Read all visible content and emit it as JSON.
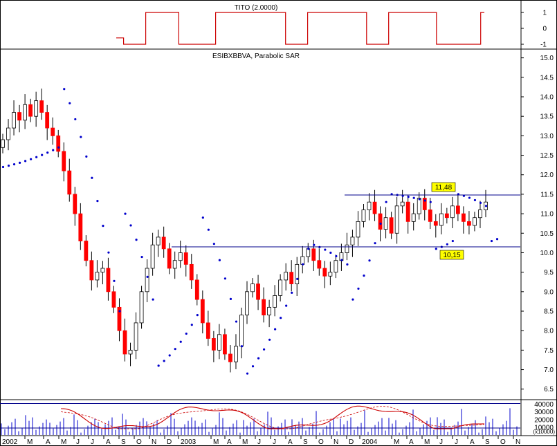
{
  "chart_data": {
    "type": "candlestick",
    "panels": [
      {
        "name": "indicator",
        "title": "TITO (2.0000)",
        "y_ticks": [
          "1",
          "0",
          "-1"
        ],
        "ylim": [
          -1,
          1
        ],
        "segments": [
          {
            "from": 0.0,
            "to": 0.02,
            "v": -0.6
          },
          {
            "from": 0.02,
            "to": 0.05,
            "v": -1
          },
          {
            "from": 0.05,
            "to": 0.08,
            "v": -1
          },
          {
            "from": 0.08,
            "to": 0.12,
            "v": 1
          },
          {
            "from": 0.12,
            "to": 0.17,
            "v": 1
          },
          {
            "from": 0.17,
            "to": 0.2,
            "v": -1
          },
          {
            "from": 0.2,
            "to": 0.27,
            "v": -1
          },
          {
            "from": 0.27,
            "to": 0.31,
            "v": 1
          },
          {
            "from": 0.31,
            "to": 0.46,
            "v": 1
          },
          {
            "from": 0.46,
            "to": 0.48,
            "v": -1
          },
          {
            "from": 0.48,
            "to": 0.52,
            "v": -1
          },
          {
            "from": 0.52,
            "to": 0.55,
            "v": 1
          },
          {
            "from": 0.55,
            "to": 0.68,
            "v": 1
          },
          {
            "from": 0.68,
            "to": 0.71,
            "v": -1
          },
          {
            "from": 0.71,
            "to": 0.74,
            "v": -1
          },
          {
            "from": 0.74,
            "to": 0.78,
            "v": 1
          },
          {
            "from": 0.78,
            "to": 0.87,
            "v": 1
          },
          {
            "from": 0.87,
            "to": 0.9,
            "v": -1
          },
          {
            "from": 0.9,
            "to": 0.96,
            "v": -1
          },
          {
            "from": 0.96,
            "to": 0.99,
            "v": -1
          },
          {
            "from": 0.99,
            "to": 1.0,
            "v": 1
          }
        ]
      },
      {
        "name": "price",
        "title": "ESIBXBBVA, Parabolic SAR",
        "y_ticks": [
          "15.0",
          "14.5",
          "14.0",
          "13.5",
          "13.0",
          "12.5",
          "12.0",
          "11.5",
          "11.0",
          "10.5",
          "10.0",
          "9.5",
          "9.0",
          "8.5",
          "8.0",
          "7.5",
          "7.0",
          "6.5"
        ],
        "ylim": [
          6.3,
          15.1
        ],
        "close_series": [
          12.9,
          13.2,
          13.6,
          13.4,
          13.8,
          13.5,
          13.9,
          13.6,
          13.2,
          13.0,
          12.6,
          12.1,
          11.5,
          11.0,
          10.3,
          9.8,
          9.3,
          9.5,
          9.6,
          9.0,
          8.6,
          8.0,
          7.4,
          7.5,
          8.2,
          9.0,
          9.6,
          10.2,
          10.4,
          10.1,
          9.6,
          9.8,
          10.0,
          9.7,
          9.3,
          8.8,
          8.2,
          7.8,
          7.5,
          7.9,
          7.4,
          7.2,
          7.6,
          8.4,
          9.0,
          9.2,
          8.8,
          8.4,
          8.6,
          8.9,
          9.3,
          9.5,
          9.2,
          9.7,
          9.9,
          10.1,
          9.8,
          9.6,
          9.4,
          9.5,
          9.8,
          10.0,
          10.2,
          10.4,
          10.8,
          11.1,
          11.3,
          11.0,
          10.6,
          10.9,
          10.5,
          11.2,
          11.3,
          10.8,
          11.0,
          11.4,
          11.1,
          10.8,
          10.7,
          11.0,
          10.9,
          11.2,
          11.0,
          10.8,
          10.7,
          10.9,
          11.1,
          11.3
        ],
        "hlines": [
          {
            "label": "11,48",
            "value": 11.48
          },
          {
            "label": "10,15",
            "value": 10.15
          }
        ],
        "sar_segments": [
          {
            "from": 0,
            "to": 10,
            "start": 12.2,
            "end": 12.7
          },
          {
            "from": 11,
            "to": 21,
            "start": 14.2,
            "end": 8.5
          },
          {
            "from": 22,
            "to": 27,
            "start": 11.0,
            "end": 8.8
          },
          {
            "from": 28,
            "to": 35,
            "start": 7.1,
            "end": 8.4
          },
          {
            "from": 36,
            "to": 43,
            "start": 10.9,
            "end": 7.6
          },
          {
            "from": 44,
            "to": 55,
            "start": 6.9,
            "end": 10.1
          },
          {
            "from": 56,
            "to": 62,
            "start": 10.2,
            "end": 9.7
          },
          {
            "from": 63,
            "to": 69,
            "start": 8.8,
            "end": 11.3
          },
          {
            "from": 70,
            "to": 77,
            "start": 11.5,
            "end": 11.3
          },
          {
            "from": 78,
            "to": 81,
            "start": 10.1,
            "end": 10.3
          },
          {
            "from": 82,
            "to": 87,
            "start": 11.5,
            "end": 11.2
          },
          {
            "from": 88,
            "to": 89,
            "start": 10.3,
            "end": 10.35
          }
        ]
      },
      {
        "name": "volume",
        "y_ticks": [
          "40000",
          "30000",
          "20000",
          "10000"
        ],
        "unit_label": "(x10000)",
        "ylim": [
          0,
          45000
        ],
        "level_line": 41000,
        "base_line": 9000
      }
    ],
    "x_ticks": [
      "2002",
      "M",
      "A",
      "M",
      "J",
      "J",
      "A",
      "S",
      "O",
      "N",
      "D",
      "2003",
      "M",
      "A",
      "M",
      "J",
      "J",
      "A",
      "S",
      "O",
      "N",
      "D",
      "2004",
      "M",
      "A",
      "M",
      "J",
      "J",
      "A",
      "S",
      "O",
      "N"
    ],
    "colors": {
      "up": "#ffffff",
      "down": "#ff0000",
      "sar": "#0000cc",
      "line": "#00008b",
      "indicator": "#cc0000"
    }
  }
}
